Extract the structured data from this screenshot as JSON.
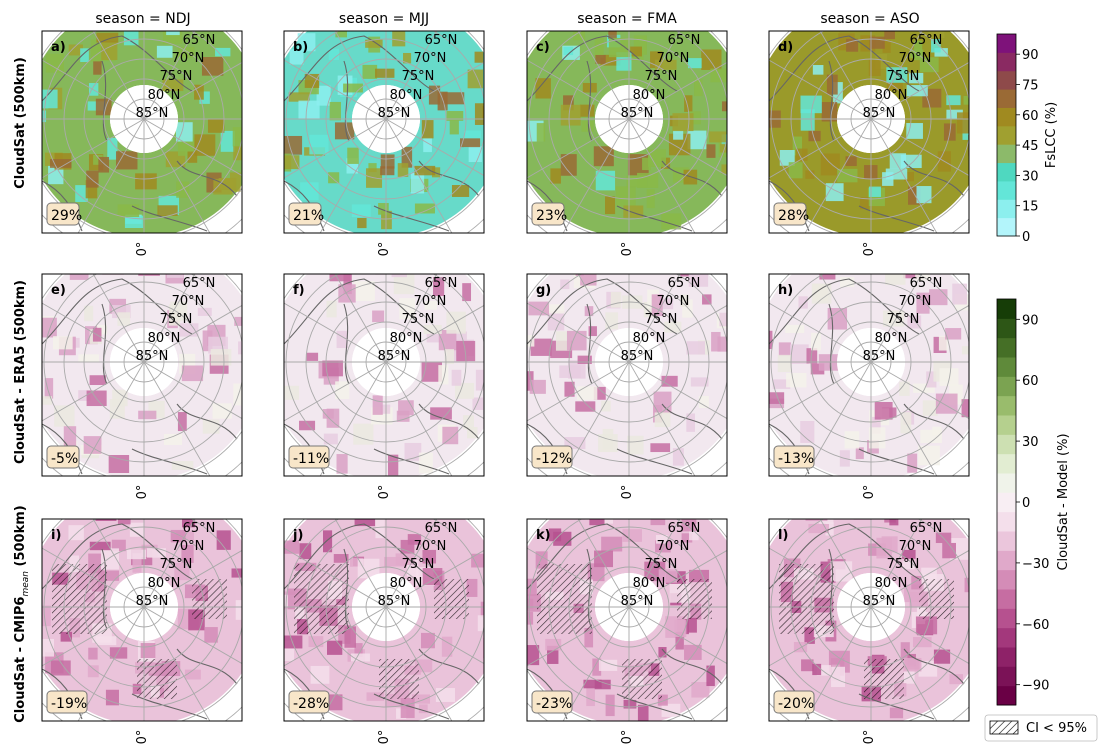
{
  "columns": [
    {
      "title": "season = NDJ"
    },
    {
      "title": "season = MJJ"
    },
    {
      "title": "season = FMA"
    },
    {
      "title": "season = ASO"
    }
  ],
  "rows": [
    {
      "label": "CloudSat (500km)",
      "label_sub": ""
    },
    {
      "label": "CloudSat - ERA5 (500km)",
      "label_sub": ""
    },
    {
      "label": "CloudSat - CMIP6",
      "label_sub": "mean",
      "label_suffix": " (500km)"
    }
  ],
  "panels": [
    {
      "letter": "a)",
      "value": "29%",
      "kind": "fslcc",
      "hatched": false
    },
    {
      "letter": "b)",
      "value": "21%",
      "kind": "fslcc",
      "hatched": false
    },
    {
      "letter": "c)",
      "value": "23%",
      "kind": "fslcc",
      "hatched": false
    },
    {
      "letter": "d)",
      "value": "28%",
      "kind": "fslcc",
      "hatched": false
    },
    {
      "letter": "e)",
      "value": "-5%",
      "kind": "diff",
      "hatched": false
    },
    {
      "letter": "f)",
      "value": "-11%",
      "kind": "diff",
      "hatched": false
    },
    {
      "letter": "g)",
      "value": "-12%",
      "kind": "diff",
      "hatched": false
    },
    {
      "letter": "h)",
      "value": "-13%",
      "kind": "diff",
      "hatched": false
    },
    {
      "letter": "i)",
      "value": "-19%",
      "kind": "diff",
      "hatched": true
    },
    {
      "letter": "j)",
      "value": "-28%",
      "kind": "diff",
      "hatched": true
    },
    {
      "letter": "k)",
      "value": "-23%",
      "kind": "diff",
      "hatched": true
    },
    {
      "letter": "l)",
      "value": "-20%",
      "kind": "diff",
      "hatched": true
    }
  ],
  "latitude_labels": [
    "65°N",
    "70°N",
    "75°N",
    "80°N",
    "85°N"
  ],
  "longitude_label": "0°",
  "colorbar_top": {
    "label": "FsLCC (%)",
    "ticks": [
      "0",
      "15",
      "30",
      "45",
      "60",
      "75",
      "90"
    ],
    "range": [
      0,
      100
    ],
    "colors": [
      "#b3f5fb",
      "#8cefee",
      "#63e6d8",
      "#4fd8c0",
      "#8cba6a",
      "#a0a030",
      "#a08a20",
      "#9a6a35",
      "#8e4a4a",
      "#8a2a62",
      "#7e127a"
    ]
  },
  "colorbar_bottom": {
    "label": "CloudSat - Model (%)",
    "ticks": [
      "−90",
      "−60",
      "−30",
      "0",
      "30",
      "60",
      "90"
    ],
    "range": [
      -100,
      100
    ],
    "colors": [
      "#6a0045",
      "#7b1257",
      "#8e2268",
      "#a3387c",
      "#b6518f",
      "#c66da2",
      "#d48cb7",
      "#e0a9ca",
      "#ebc6dc",
      "#f4dfeb",
      "#f8eef3",
      "#f0f3ea",
      "#e2edd2",
      "#cde0b2",
      "#b5d08e",
      "#99bc6c",
      "#7ba351",
      "#5f8a3a",
      "#456f26",
      "#2d5616",
      "#163d07"
    ]
  },
  "legend": {
    "label": "CI < 95%"
  }
}
